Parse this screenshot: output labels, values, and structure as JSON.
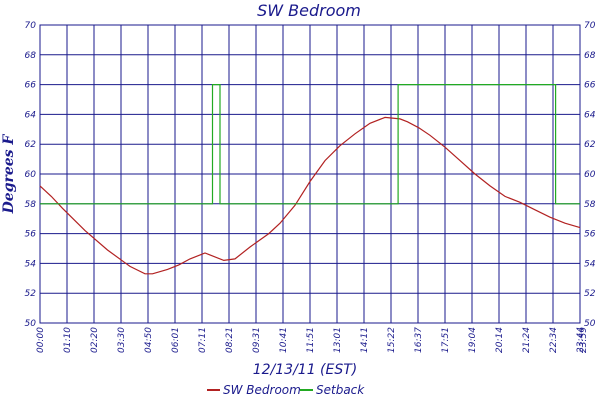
{
  "chart_data": {
    "type": "line",
    "title": "SW Bedroom",
    "xlabel": "12/13/11 (EST)",
    "ylabel": "Degrees F",
    "ylim": [
      50,
      70
    ],
    "yticks": [
      50,
      52,
      54,
      56,
      58,
      60,
      62,
      64,
      66,
      68,
      70
    ],
    "xlim": [
      0,
      1440
    ],
    "xtick_labels": [
      "00:00",
      "01:10",
      "02:20",
      "03:30",
      "04:50",
      "06:01",
      "07:11",
      "08:21",
      "09:31",
      "10:41",
      "11:51",
      "13:01",
      "14:11",
      "15:22",
      "16:37",
      "17:51",
      "19:04",
      "20:14",
      "21:24",
      "22:34",
      "23:44",
      "23:59"
    ],
    "grid": true,
    "legend_position": "bottom",
    "series": [
      {
        "name": "SW Bedroom",
        "color": "#b22222",
        "x": [
          0,
          30,
          60,
          120,
          180,
          240,
          280,
          300,
          340,
          370,
          400,
          440,
          460,
          490,
          520,
          560,
          610,
          640,
          680,
          720,
          760,
          800,
          840,
          880,
          920,
          960,
          980,
          1010,
          1040,
          1080,
          1120,
          1160,
          1200,
          1240,
          1280,
          1320,
          1360,
          1400,
          1440
        ],
        "values": [
          59.2,
          58.5,
          57.7,
          56.2,
          54.9,
          53.8,
          53.3,
          53.3,
          53.6,
          53.9,
          54.3,
          54.7,
          54.5,
          54.2,
          54.3,
          55.1,
          56.0,
          56.7,
          57.9,
          59.5,
          60.9,
          61.9,
          62.7,
          63.4,
          63.8,
          63.7,
          63.5,
          63.1,
          62.6,
          61.8,
          60.9,
          60.0,
          59.2,
          58.5,
          58.1,
          57.6,
          57.1,
          56.7,
          56.4
        ]
      },
      {
        "name": "Setback",
        "color": "#22aa22",
        "x": [
          0,
          460,
          460,
          480,
          480,
          955,
          955,
          1375,
          1375,
          1440
        ],
        "values": [
          58,
          58,
          66,
          66,
          58,
          58,
          66,
          66,
          58,
          58
        ]
      }
    ]
  }
}
